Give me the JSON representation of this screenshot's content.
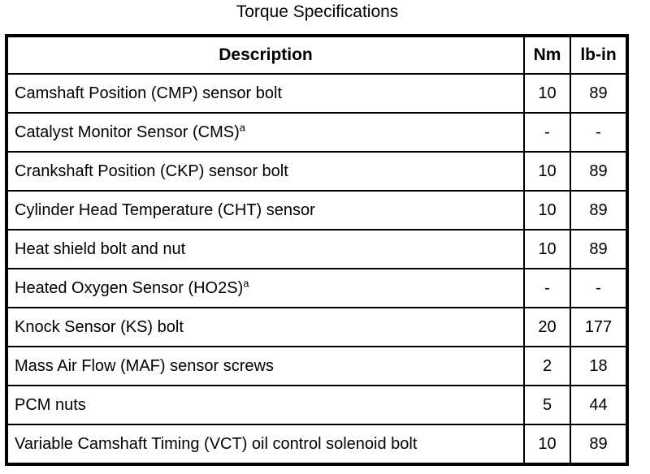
{
  "title": "Torque Specifications",
  "table": {
    "headers": [
      "Description",
      "Nm",
      "lb-in"
    ],
    "rows": [
      {
        "description": "Camshaft Position (CMP) sensor bolt",
        "footnote": "",
        "nm": "10",
        "lb_in": "89"
      },
      {
        "description": "Catalyst Monitor Sensor (CMS)",
        "footnote": "a",
        "nm": "-",
        "lb_in": "-"
      },
      {
        "description": "Crankshaft Position (CKP) sensor bolt",
        "footnote": "",
        "nm": "10",
        "lb_in": "89"
      },
      {
        "description": "Cylinder Head Temperature (CHT) sensor",
        "footnote": "",
        "nm": "10",
        "lb_in": "89"
      },
      {
        "description": "Heat shield bolt and nut",
        "footnote": "",
        "nm": "10",
        "lb_in": "89"
      },
      {
        "description": "Heated Oxygen Sensor (HO2S)",
        "footnote": "a",
        "nm": "-",
        "lb_in": "-"
      },
      {
        "description": "Knock Sensor (KS) bolt",
        "footnote": "",
        "nm": "20",
        "lb_in": "177"
      },
      {
        "description": "Mass Air Flow (MAF) sensor screws",
        "footnote": "",
        "nm": "2",
        "lb_in": "18"
      },
      {
        "description": "PCM nuts",
        "footnote": "",
        "nm": "5",
        "lb_in": "44"
      },
      {
        "description": "Variable Camshaft Timing (VCT) oil control solenoid bolt",
        "footnote": "",
        "nm": "10",
        "lb_in": "89"
      }
    ]
  },
  "colors": {
    "text": "#000000",
    "background": "#ffffff",
    "border": "#000000"
  },
  "chart_data": {
    "type": "table",
    "title": "Torque Specifications",
    "columns": [
      "Description",
      "Nm",
      "lb-in"
    ],
    "rows": [
      [
        "Camshaft Position (CMP) sensor bolt",
        "10",
        "89"
      ],
      [
        "Catalyst Monitor Sensor (CMS)a",
        "-",
        "-"
      ],
      [
        "Crankshaft Position (CKP) sensor bolt",
        "10",
        "89"
      ],
      [
        "Cylinder Head Temperature (CHT) sensor",
        "10",
        "89"
      ],
      [
        "Heat shield bolt and nut",
        "10",
        "89"
      ],
      [
        "Heated Oxygen Sensor (HO2S)a",
        "-",
        "-"
      ],
      [
        "Knock Sensor (KS) bolt",
        "20",
        "177"
      ],
      [
        "Mass Air Flow (MAF) sensor screws",
        "2",
        "18"
      ],
      [
        "PCM nuts",
        "5",
        "44"
      ],
      [
        "Variable Camshaft Timing (VCT) oil control solenoid bolt",
        "10",
        "89"
      ]
    ]
  }
}
